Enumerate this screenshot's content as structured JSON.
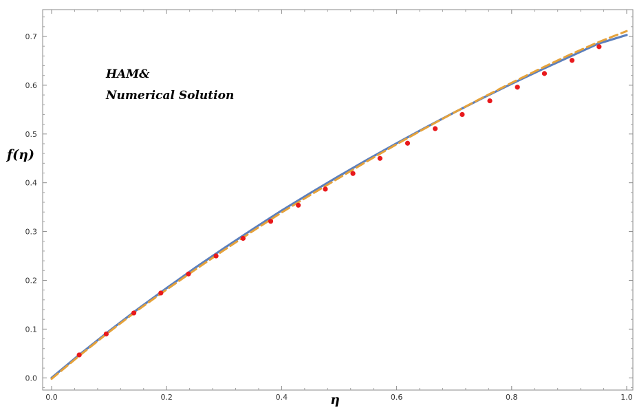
{
  "chart_data": {
    "type": "line",
    "xlabel": "η",
    "ylabel": "f(η)",
    "annotation": [
      "HAM&",
      "Numerical Solution"
    ],
    "xlim": [
      0.0,
      1.0
    ],
    "ylim": [
      -0.025,
      0.755
    ],
    "x_ticks": [
      0.0,
      0.2,
      0.4,
      0.6,
      0.8,
      1.0
    ],
    "x_tick_labels": [
      "0.0",
      "0.2",
      "0.4",
      "0.6",
      "0.8",
      "1.0"
    ],
    "y_ticks": [
      0.0,
      0.1,
      0.2,
      0.3,
      0.4,
      0.5,
      0.6,
      0.7
    ],
    "y_tick_labels": [
      "0.0",
      "0.1",
      "0.2",
      "0.3",
      "0.4",
      "0.5",
      "0.6",
      "0.7"
    ],
    "grid": false,
    "series": [
      {
        "style": "solid",
        "color": "#5b7fbd",
        "x": [
          0.0,
          0.05,
          0.1,
          0.15,
          0.2,
          0.25,
          0.3,
          0.35,
          0.4,
          0.45,
          0.5,
          0.55,
          0.6,
          0.65,
          0.7,
          0.75,
          0.8,
          0.85,
          0.9,
          0.95,
          1.0
        ],
        "y": [
          0.0,
          0.049,
          0.096,
          0.141,
          0.184,
          0.226,
          0.266,
          0.305,
          0.343,
          0.379,
          0.414,
          0.448,
          0.481,
          0.513,
          0.544,
          0.574,
          0.603,
          0.631,
          0.658,
          0.685,
          0.703
        ]
      },
      {
        "style": "dashed",
        "color": "#e5a23b",
        "x": [
          0.0,
          0.05,
          0.1,
          0.15,
          0.2,
          0.25,
          0.3,
          0.35,
          0.4,
          0.45,
          0.5,
          0.55,
          0.6,
          0.65,
          0.7,
          0.75,
          0.8,
          0.85,
          0.9,
          0.95,
          1.0
        ],
        "y": [
          -0.002,
          0.047,
          0.094,
          0.139,
          0.181,
          0.222,
          0.262,
          0.301,
          0.339,
          0.375,
          0.41,
          0.445,
          0.479,
          0.512,
          0.544,
          0.575,
          0.605,
          0.634,
          0.662,
          0.688,
          0.711
        ]
      },
      {
        "style": "markers",
        "color": "#e8191c",
        "x": [
          0.048,
          0.095,
          0.143,
          0.19,
          0.238,
          0.286,
          0.333,
          0.381,
          0.429,
          0.476,
          0.524,
          0.571,
          0.619,
          0.667,
          0.714,
          0.762,
          0.81,
          0.857,
          0.905,
          0.952
        ],
        "y": [
          0.047,
          0.09,
          0.133,
          0.174,
          0.213,
          0.25,
          0.286,
          0.321,
          0.354,
          0.387,
          0.419,
          0.45,
          0.481,
          0.511,
          0.54,
          0.568,
          0.596,
          0.624,
          0.651,
          0.679
        ]
      }
    ]
  }
}
